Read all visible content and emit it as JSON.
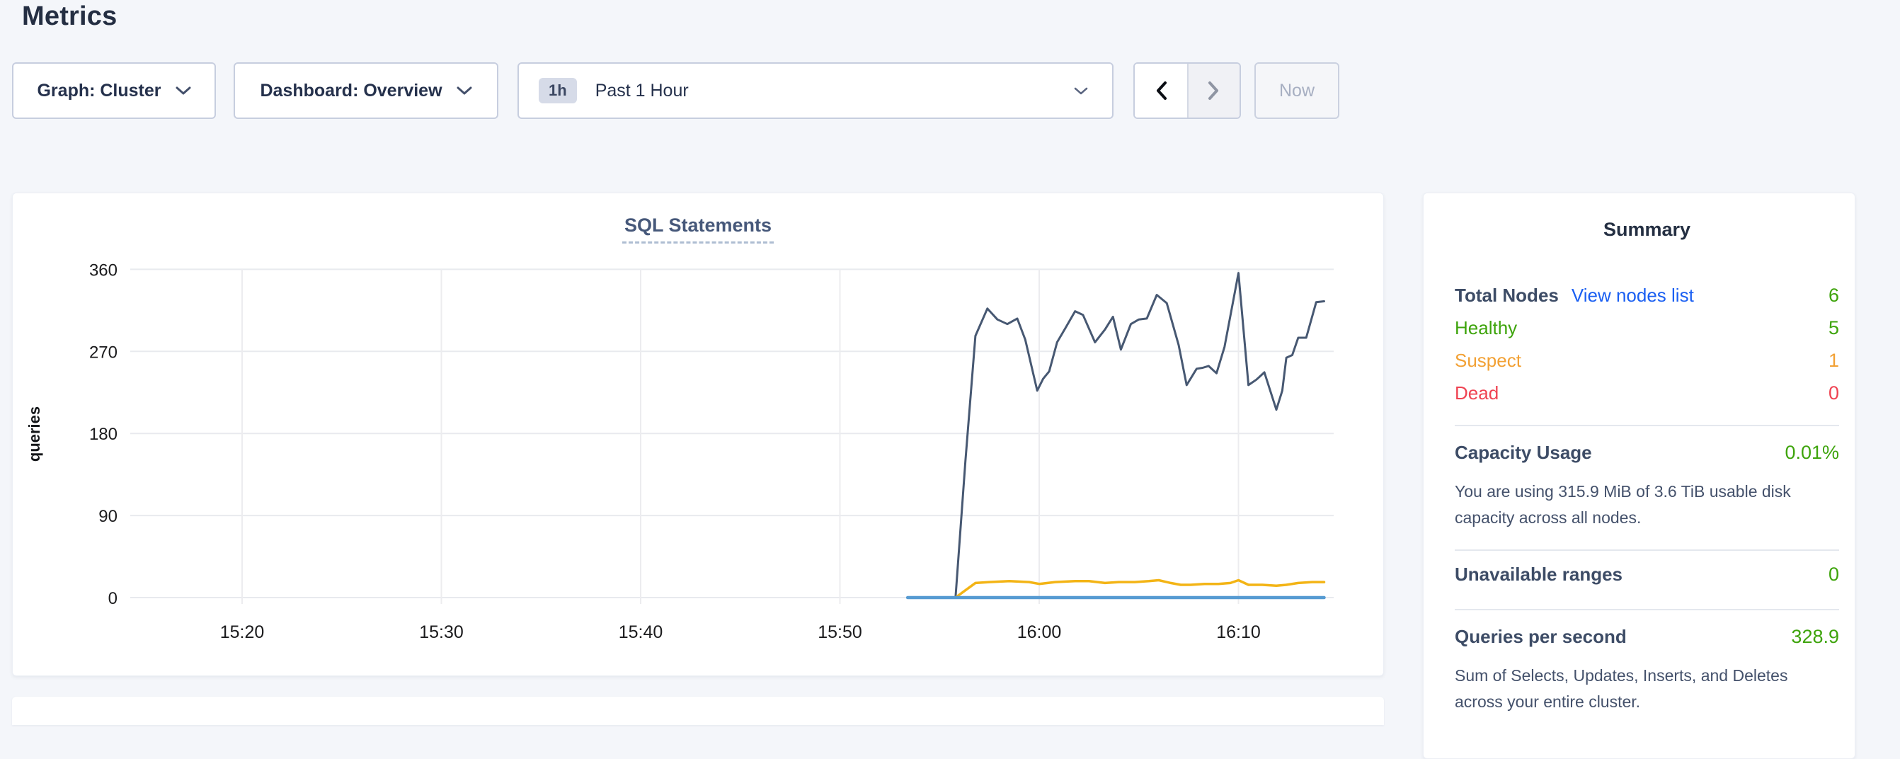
{
  "page": {
    "title": "Metrics"
  },
  "toolbar": {
    "graph_dropdown": "Graph: Cluster",
    "dashboard_dropdown": "Dashboard: Overview",
    "time_window": {
      "badge": "1h",
      "label": "Past 1 Hour"
    },
    "now_button": "Now"
  },
  "chart_card": {
    "title": "SQL Statements"
  },
  "chart_data": {
    "type": "line",
    "title": "SQL Statements",
    "ylabel": "queries",
    "xlabel": "",
    "x_unit": "minutes after 15:00 (clock time)",
    "x_range": [
      14.4,
      74.8
    ],
    "ylim": [
      0,
      360
    ],
    "y_ticks": [
      0,
      90,
      180,
      270,
      360
    ],
    "x_ticks": [
      {
        "t": 20,
        "label": "15:20"
      },
      {
        "t": 30,
        "label": "15:30"
      },
      {
        "t": 40,
        "label": "15:40"
      },
      {
        "t": 50,
        "label": "15:50"
      },
      {
        "t": 60,
        "label": "16:00"
      },
      {
        "t": 70,
        "label": "16:10"
      }
    ],
    "grid": true,
    "legend_visible": false,
    "series": [
      {
        "name": "dark-slate-line",
        "color": "#475872",
        "points": [
          [
            53.4,
            0
          ],
          [
            55.8,
            0
          ],
          [
            56.3,
            150
          ],
          [
            56.8,
            287
          ],
          [
            57.4,
            317
          ],
          [
            57.9,
            305
          ],
          [
            58.4,
            300
          ],
          [
            58.9,
            306
          ],
          [
            59.3,
            283
          ],
          [
            59.9,
            227
          ],
          [
            60.2,
            240
          ],
          [
            60.5,
            248
          ],
          [
            60.9,
            280
          ],
          [
            61.3,
            295
          ],
          [
            61.8,
            314
          ],
          [
            62.2,
            310
          ],
          [
            62.8,
            280
          ],
          [
            63.3,
            294
          ],
          [
            63.7,
            308
          ],
          [
            64.1,
            272
          ],
          [
            64.6,
            300
          ],
          [
            65.0,
            305
          ],
          [
            65.4,
            306
          ],
          [
            65.9,
            332
          ],
          [
            66.4,
            323
          ],
          [
            67.0,
            277
          ],
          [
            67.4,
            233
          ],
          [
            67.9,
            251
          ],
          [
            68.2,
            252
          ],
          [
            68.5,
            254
          ],
          [
            68.9,
            246
          ],
          [
            69.3,
            275
          ],
          [
            70.0,
            356
          ],
          [
            70.5,
            233
          ],
          [
            70.9,
            239
          ],
          [
            71.3,
            247
          ],
          [
            71.9,
            206
          ],
          [
            72.2,
            227
          ],
          [
            72.4,
            263
          ],
          [
            72.7,
            266
          ],
          [
            73.0,
            285
          ],
          [
            73.4,
            285
          ],
          [
            73.9,
            324
          ],
          [
            74.3,
            325
          ]
        ]
      },
      {
        "name": "yellow-line",
        "color": "#f3b415",
        "points": [
          [
            53.4,
            0
          ],
          [
            55.8,
            0
          ],
          [
            56.3,
            8
          ],
          [
            56.8,
            16
          ],
          [
            57.5,
            17
          ],
          [
            58.5,
            18
          ],
          [
            59.5,
            17
          ],
          [
            60.0,
            15
          ],
          [
            60.8,
            17
          ],
          [
            61.8,
            18
          ],
          [
            62.5,
            18
          ],
          [
            63.3,
            16
          ],
          [
            64.0,
            17
          ],
          [
            64.8,
            17
          ],
          [
            65.5,
            18
          ],
          [
            66.0,
            19
          ],
          [
            66.6,
            16
          ],
          [
            67.1,
            14
          ],
          [
            67.6,
            14
          ],
          [
            68.3,
            15
          ],
          [
            69.0,
            15
          ],
          [
            69.6,
            16
          ],
          [
            70.0,
            19
          ],
          [
            70.5,
            14
          ],
          [
            71.2,
            14
          ],
          [
            71.9,
            13
          ],
          [
            72.4,
            14
          ],
          [
            73.0,
            16
          ],
          [
            73.7,
            17
          ],
          [
            74.3,
            17
          ]
        ]
      },
      {
        "name": "light-blue-line",
        "color": "#569bd2",
        "points": [
          [
            53.4,
            0
          ],
          [
            74.3,
            0
          ]
        ]
      }
    ]
  },
  "summary": {
    "title": "Summary",
    "total_nodes": {
      "label": "Total Nodes",
      "link": "View nodes list",
      "value": "6"
    },
    "healthy": {
      "label": "Healthy",
      "value": "5"
    },
    "suspect": {
      "label": "Suspect",
      "value": "1"
    },
    "dead": {
      "label": "Dead",
      "value": "0"
    },
    "capacity": {
      "label": "Capacity Usage",
      "value": "0.01%",
      "description": "You are using 315.9 MiB of 3.6 TiB usable disk capacity across all nodes."
    },
    "unavailable_ranges": {
      "label": "Unavailable ranges",
      "value": "0"
    },
    "qps": {
      "label": "Queries per second",
      "value": "328.9",
      "description": "Sum of Selects, Updates, Inserts, and Deletes across your entire cluster."
    }
  },
  "colors": {
    "accent_green": "#3ea40c",
    "accent_orange": "#f2a135",
    "accent_red": "#ef4352",
    "link_blue": "#1a5ff2",
    "series_dark": "#475872",
    "series_yellow": "#f3b415",
    "series_blue": "#569bd2"
  }
}
